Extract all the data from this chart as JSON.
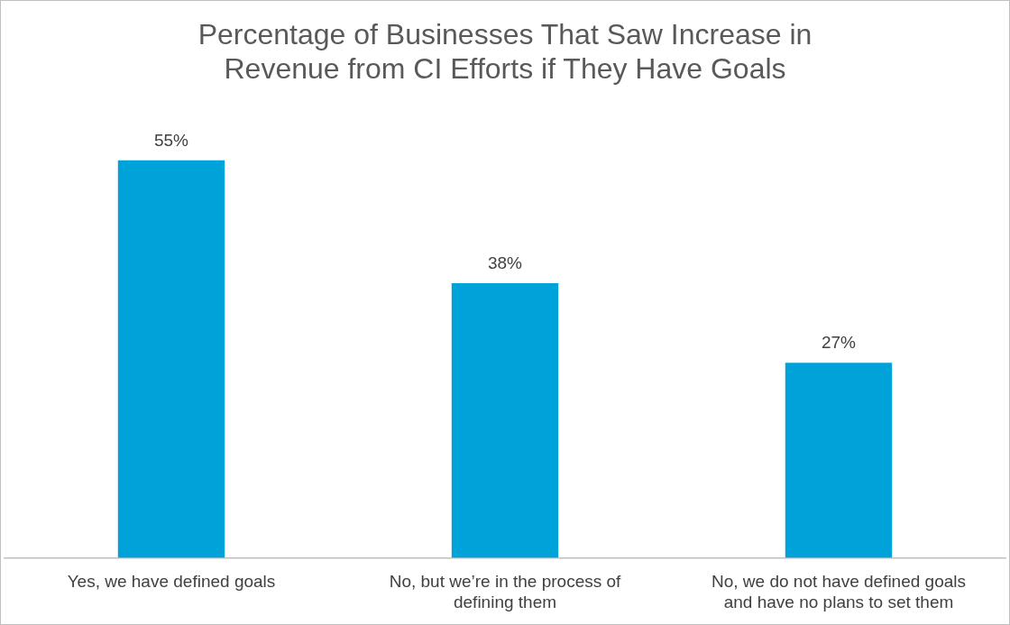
{
  "chart_data": {
    "type": "bar",
    "title": "Percentage of Businesses That Saw Increase in Revenue from CI Efforts if They Have Goals",
    "categories": [
      "Yes, we have defined goals",
      "No, but we’re in the process of defining them",
      "No, we do not have defined goals and have no plans to set them"
    ],
    "values": [
      55,
      38,
      27
    ],
    "value_labels": [
      "55%",
      "38%",
      "27%"
    ],
    "color": "#00a3d9",
    "tick_labels": "x",
    "legend": false
  }
}
